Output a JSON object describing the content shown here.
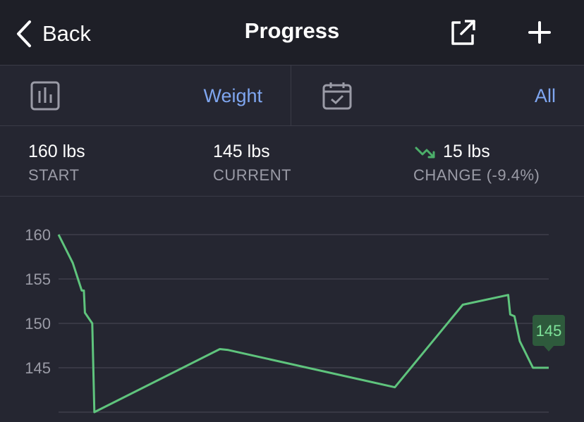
{
  "nav": {
    "back_label": "Back",
    "title": "Progress",
    "share_icon": "share-external-icon",
    "add_icon": "plus-icon"
  },
  "filters": {
    "metric_icon": "bar-chart-icon",
    "metric_value": "Weight",
    "range_icon": "calendar-check-icon",
    "range_value": "All"
  },
  "stats": {
    "start": {
      "value": "160 lbs",
      "label": "START"
    },
    "current": {
      "value": "145 lbs",
      "label": "CURRENT"
    },
    "change": {
      "icon": "trend-down-icon",
      "value": "15 lbs",
      "label": "CHANGE (-9.4%)"
    }
  },
  "colors": {
    "line": "#5fc47d",
    "accent": "#7fa6f0",
    "tooltip_bg": "#2e5a3c",
    "trend_down": "#4caf6a"
  },
  "chart_data": {
    "type": "line",
    "y_ticks": [
      160,
      155,
      150,
      145
    ],
    "ylim": [
      140,
      162.5
    ],
    "grid": true,
    "series": [
      {
        "values": [
          [
            0,
            160
          ],
          [
            2.7,
            156.8
          ],
          [
            4.4,
            153.7
          ],
          [
            4.8,
            153.7
          ],
          [
            5.0,
            151.2
          ],
          [
            6.4,
            150.0
          ],
          [
            6.8,
            140.0
          ],
          [
            30.6,
            147.1
          ],
          [
            32.2,
            147.0
          ],
          [
            63.8,
            142.8
          ],
          [
            76.7,
            152.1
          ],
          [
            85.3,
            153.2
          ],
          [
            85.7,
            151.0
          ],
          [
            86.5,
            150.8
          ],
          [
            87.5,
            148.0
          ],
          [
            90.0,
            145.0
          ],
          [
            93.0,
            145.0
          ]
        ]
      }
    ],
    "current_label": "145"
  }
}
